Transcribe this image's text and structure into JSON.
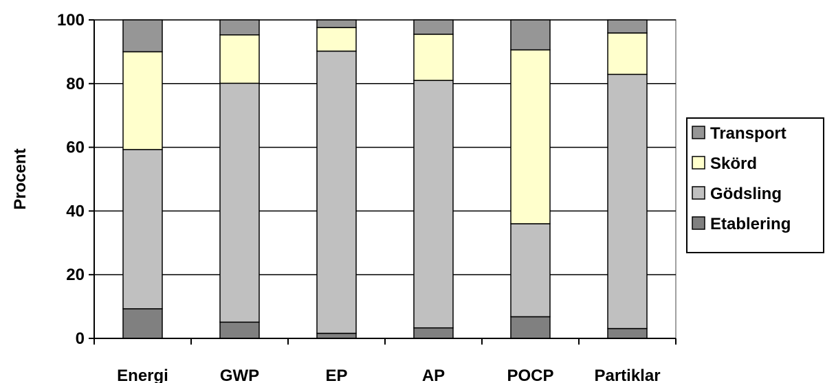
{
  "chart_data": {
    "type": "bar",
    "stacked": true,
    "ylabel": "Procent",
    "xlabel": "",
    "ylim": [
      0,
      100
    ],
    "yticks": [
      0,
      20,
      40,
      60,
      80,
      100
    ],
    "grid": true,
    "legend_position": "right",
    "categories": [
      "Energi",
      "GWP",
      "EP",
      "AP",
      "POCP",
      "Partiklar"
    ],
    "series": [
      {
        "name": "Etablering",
        "color": "#808080",
        "values": [
          9.3,
          5.1,
          1.6,
          3.3,
          6.8,
          3.1
        ]
      },
      {
        "name": "Gödsling",
        "color": "#c0c0c0",
        "values": [
          50.0,
          75.0,
          88.6,
          77.7,
          29.2,
          79.8
        ]
      },
      {
        "name": "Skörd",
        "color": "#ffffcc",
        "values": [
          30.7,
          15.2,
          7.4,
          14.5,
          54.6,
          13.0
        ]
      },
      {
        "name": "Transport",
        "color": "#969696",
        "values": [
          10.0,
          4.7,
          2.4,
          4.5,
          9.4,
          4.1
        ]
      }
    ],
    "legend_order": [
      "Transport",
      "Skörd",
      "Gödsling",
      "Etablering"
    ]
  }
}
